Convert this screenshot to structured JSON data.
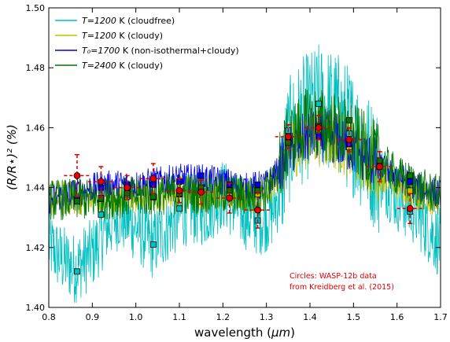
{
  "chart_data": {
    "type": "line",
    "title": "",
    "xlabel_prefix": "wavelength (",
    "xlabel_unit": "μm",
    "xlabel_suffix": ")",
    "ylabel": "(R/R⋆)² (%)",
    "xlim": [
      0.8,
      1.7
    ],
    "ylim": [
      1.4,
      1.5
    ],
    "xticks": [
      0.8,
      0.9,
      1.0,
      1.1,
      1.2,
      1.3,
      1.4,
      1.5,
      1.6,
      1.7
    ],
    "xtick_labels": [
      "0.8",
      "0.9",
      "1.0",
      "1.1",
      "1.2",
      "1.3",
      "1.4",
      "1.5",
      "1.6",
      "1.7"
    ],
    "yticks": [
      1.4,
      1.42,
      1.44,
      1.46,
      1.48,
      1.5
    ],
    "ytick_labels": [
      "1.40",
      "1.42",
      "1.44",
      "1.46",
      "1.48",
      "1.50"
    ],
    "grid": false,
    "legend_position": "top-left",
    "series": [
      {
        "name_math": "T=1200",
        "name_rest": " K (cloudfree)",
        "color": "#00bfbf",
        "anchors_x": [
          0.8,
          0.83,
          0.86,
          0.9,
          0.93,
          0.96,
          1.0,
          1.04,
          1.08,
          1.12,
          1.16,
          1.2,
          1.24,
          1.28,
          1.31,
          1.33,
          1.35,
          1.38,
          1.42,
          1.46,
          1.5,
          1.55,
          1.6,
          1.65,
          1.7
        ],
        "anchors_y": [
          1.421,
          1.416,
          1.413,
          1.418,
          1.426,
          1.431,
          1.427,
          1.421,
          1.428,
          1.433,
          1.432,
          1.438,
          1.432,
          1.429,
          1.431,
          1.438,
          1.455,
          1.462,
          1.467,
          1.465,
          1.458,
          1.447,
          1.437,
          1.431,
          1.421
        ],
        "noise": 0.012,
        "markers": [
          {
            "x": 0.865,
            "y": 1.412
          },
          {
            "x": 0.92,
            "y": 1.431
          },
          {
            "x": 0.98,
            "y": 1.437
          },
          {
            "x": 1.04,
            "y": 1.421
          },
          {
            "x": 1.1,
            "y": 1.433
          },
          {
            "x": 1.15,
            "y": 1.444
          },
          {
            "x": 1.215,
            "y": 1.44
          },
          {
            "x": 1.28,
            "y": 1.429
          },
          {
            "x": 1.35,
            "y": 1.459
          },
          {
            "x": 1.42,
            "y": 1.468
          },
          {
            "x": 1.49,
            "y": 1.458
          },
          {
            "x": 1.56,
            "y": 1.448
          },
          {
            "x": 1.63,
            "y": 1.432
          }
        ]
      },
      {
        "name_math": "T=1200",
        "name_rest": " K (cloudy)",
        "color": "#bfbf00",
        "anchors_x": [
          0.8,
          0.9,
          1.0,
          1.1,
          1.2,
          1.28,
          1.31,
          1.33,
          1.35,
          1.4,
          1.45,
          1.5,
          1.55,
          1.6,
          1.65,
          1.7
        ],
        "anchors_y": [
          1.436,
          1.437,
          1.437,
          1.439,
          1.438,
          1.437,
          1.44,
          1.445,
          1.452,
          1.458,
          1.457,
          1.452,
          1.446,
          1.441,
          1.438,
          1.436
        ],
        "noise": 0.006,
        "markers": [
          {
            "x": 0.865,
            "y": 1.4355
          },
          {
            "x": 0.92,
            "y": 1.4362
          },
          {
            "x": 0.98,
            "y": 1.4375
          },
          {
            "x": 1.04,
            "y": 1.4368
          },
          {
            "x": 1.1,
            "y": 1.4378
          },
          {
            "x": 1.15,
            "y": 1.439
          },
          {
            "x": 1.215,
            "y": 1.438
          },
          {
            "x": 1.28,
            "y": 1.4378
          },
          {
            "x": 1.35,
            "y": 1.456
          },
          {
            "x": 1.42,
            "y": 1.4595
          },
          {
            "x": 1.49,
            "y": 1.4535
          },
          {
            "x": 1.56,
            "y": 1.447
          },
          {
            "x": 1.63,
            "y": 1.439
          }
        ]
      },
      {
        "name_math": "T₀=1700",
        "name_rest": " K (non-isothermal+cloudy)",
        "color": "#0000ee",
        "anchors_x": [
          0.8,
          0.85,
          0.9,
          0.95,
          1.0,
          1.05,
          1.1,
          1.15,
          1.2,
          1.25,
          1.3,
          1.33,
          1.35,
          1.4,
          1.45,
          1.5,
          1.55,
          1.6,
          1.65,
          1.7
        ],
        "anchors_y": [
          1.436,
          1.438,
          1.44,
          1.441,
          1.441,
          1.442,
          1.443,
          1.443,
          1.442,
          1.44,
          1.441,
          1.446,
          1.452,
          1.458,
          1.457,
          1.453,
          1.448,
          1.444,
          1.44,
          1.438
        ],
        "noise": 0.005,
        "markers": [
          {
            "x": 0.865,
            "y": 1.436
          },
          {
            "x": 0.92,
            "y": 1.44
          },
          {
            "x": 0.98,
            "y": 1.441
          },
          {
            "x": 1.04,
            "y": 1.441
          },
          {
            "x": 1.1,
            "y": 1.442
          },
          {
            "x": 1.15,
            "y": 1.444
          },
          {
            "x": 1.215,
            "y": 1.441
          },
          {
            "x": 1.28,
            "y": 1.441
          },
          {
            "x": 1.35,
            "y": 1.456
          },
          {
            "x": 1.42,
            "y": 1.457
          },
          {
            "x": 1.49,
            "y": 1.4545
          },
          {
            "x": 1.56,
            "y": 1.448
          },
          {
            "x": 1.63,
            "y": 1.442
          }
        ]
      },
      {
        "name_math": "T=2400",
        "name_rest": " K (cloudy)",
        "color": "#007700",
        "anchors_x": [
          0.8,
          0.9,
          1.0,
          1.1,
          1.2,
          1.28,
          1.31,
          1.33,
          1.35,
          1.4,
          1.45,
          1.5,
          1.55,
          1.6,
          1.65,
          1.7
        ],
        "anchors_y": [
          1.436,
          1.436,
          1.437,
          1.438,
          1.438,
          1.437,
          1.44,
          1.447,
          1.455,
          1.462,
          1.46,
          1.456,
          1.45,
          1.444,
          1.44,
          1.437
        ],
        "noise": 0.007,
        "markers": [
          {
            "x": 0.865,
            "y": 1.4355
          },
          {
            "x": 0.92,
            "y": 1.4365
          },
          {
            "x": 0.98,
            "y": 1.438
          },
          {
            "x": 1.04,
            "y": 1.437
          },
          {
            "x": 1.1,
            "y": 1.438
          },
          {
            "x": 1.15,
            "y": 1.44
          },
          {
            "x": 1.215,
            "y": 1.439
          },
          {
            "x": 1.28,
            "y": 1.439
          },
          {
            "x": 1.35,
            "y": 1.455
          },
          {
            "x": 1.42,
            "y": 1.4605
          },
          {
            "x": 1.49,
            "y": 1.4625
          },
          {
            "x": 1.56,
            "y": 1.449
          },
          {
            "x": 1.63,
            "y": 1.444
          }
        ]
      }
    ],
    "observations": {
      "color": "#e00000",
      "points": [
        {
          "x": 0.865,
          "y": 1.444,
          "xerr": 0.03,
          "yerr": 0.007
        },
        {
          "x": 0.92,
          "y": 1.442,
          "xerr": 0.03,
          "yerr": 0.005
        },
        {
          "x": 0.98,
          "y": 1.44,
          "xerr": 0.03,
          "yerr": 0.004
        },
        {
          "x": 1.04,
          "y": 1.443,
          "xerr": 0.03,
          "yerr": 0.005
        },
        {
          "x": 1.1,
          "y": 1.439,
          "xerr": 0.03,
          "yerr": 0.004
        },
        {
          "x": 1.15,
          "y": 1.4385,
          "xerr": 0.03,
          "yerr": 0.004
        },
        {
          "x": 1.215,
          "y": 1.4365,
          "xerr": 0.03,
          "yerr": 0.005
        },
        {
          "x": 1.28,
          "y": 1.4325,
          "xerr": 0.03,
          "yerr": 0.006
        },
        {
          "x": 1.35,
          "y": 1.457,
          "xerr": 0.03,
          "yerr": 0.004
        },
        {
          "x": 1.42,
          "y": 1.46,
          "xerr": 0.03,
          "yerr": 0.004
        },
        {
          "x": 1.49,
          "y": 1.456,
          "xerr": 0.03,
          "yerr": 0.004
        },
        {
          "x": 1.56,
          "y": 1.447,
          "xerr": 0.03,
          "yerr": 0.005
        },
        {
          "x": 1.63,
          "y": 1.433,
          "xerr": 0.03,
          "yerr": 0.005
        }
      ]
    },
    "annotation": {
      "line1": "Circles: WASP-12b data",
      "line2": "from Kreidberg et al. (2015)"
    }
  }
}
